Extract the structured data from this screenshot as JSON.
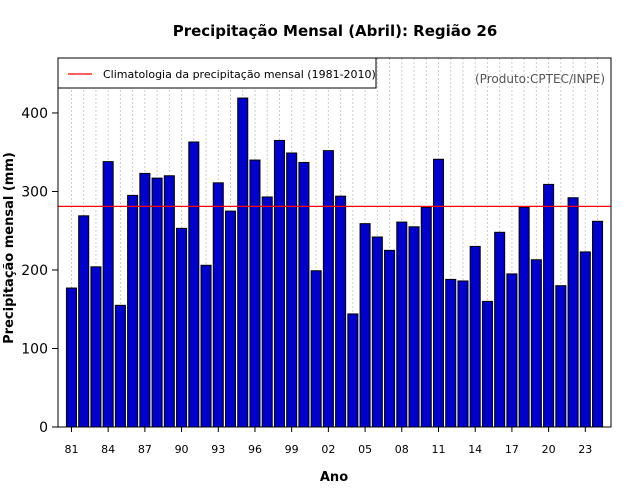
{
  "chart_data": {
    "type": "bar",
    "title": "Precipitação Mensal (Abril): Região 26",
    "xlabel": "Ano",
    "ylabel": "Precipitação mensal (mm)",
    "ylim": [
      0,
      470
    ],
    "yticks": [
      0,
      100,
      200,
      300,
      400
    ],
    "categories": [
      "1981",
      "1982",
      "1983",
      "1984",
      "1985",
      "1986",
      "1987",
      "1988",
      "1989",
      "1990",
      "1991",
      "1992",
      "1993",
      "1994",
      "1995",
      "1996",
      "1997",
      "1998",
      "1999",
      "2000",
      "2001",
      "2002",
      "2003",
      "2004",
      "2005",
      "2006",
      "2007",
      "2008",
      "2009",
      "2010",
      "2011",
      "2012",
      "2013",
      "2014",
      "2015",
      "2016",
      "2017",
      "2018",
      "2019",
      "2020",
      "2021",
      "2022",
      "2023",
      "2024"
    ],
    "xtick_labels": [
      {
        "index": 0,
        "label": "81"
      },
      {
        "index": 3,
        "label": "84"
      },
      {
        "index": 6,
        "label": "87"
      },
      {
        "index": 9,
        "label": "90"
      },
      {
        "index": 12,
        "label": "93"
      },
      {
        "index": 15,
        "label": "96"
      },
      {
        "index": 18,
        "label": "99"
      },
      {
        "index": 21,
        "label": "02"
      },
      {
        "index": 24,
        "label": "05"
      },
      {
        "index": 27,
        "label": "08"
      },
      {
        "index": 30,
        "label": "11"
      },
      {
        "index": 33,
        "label": "14"
      },
      {
        "index": 36,
        "label": "17"
      },
      {
        "index": 39,
        "label": "20"
      },
      {
        "index": 42,
        "label": "23"
      }
    ],
    "values": [
      177,
      269,
      204,
      338,
      155,
      295,
      323,
      317,
      320,
      253,
      363,
      206,
      311,
      275,
      419,
      340,
      293,
      365,
      349,
      337,
      199,
      352,
      294,
      144,
      259,
      242,
      225,
      261,
      255,
      280,
      341,
      188,
      186,
      230,
      160,
      248,
      195,
      280,
      213,
      309,
      180,
      292,
      223,
      262
    ],
    "climatology": 281,
    "bar_color": "#0000cc",
    "bar_edge_color": "#000000",
    "climatology_color": "#ff0000",
    "grid": true,
    "legend": {
      "position": "top-left",
      "entries": [
        {
          "label": "Climatologia da precipitação mensal (1981-2010)",
          "color": "#ff0000"
        }
      ]
    },
    "credit": "(Produto:CPTEC/INPE)"
  }
}
